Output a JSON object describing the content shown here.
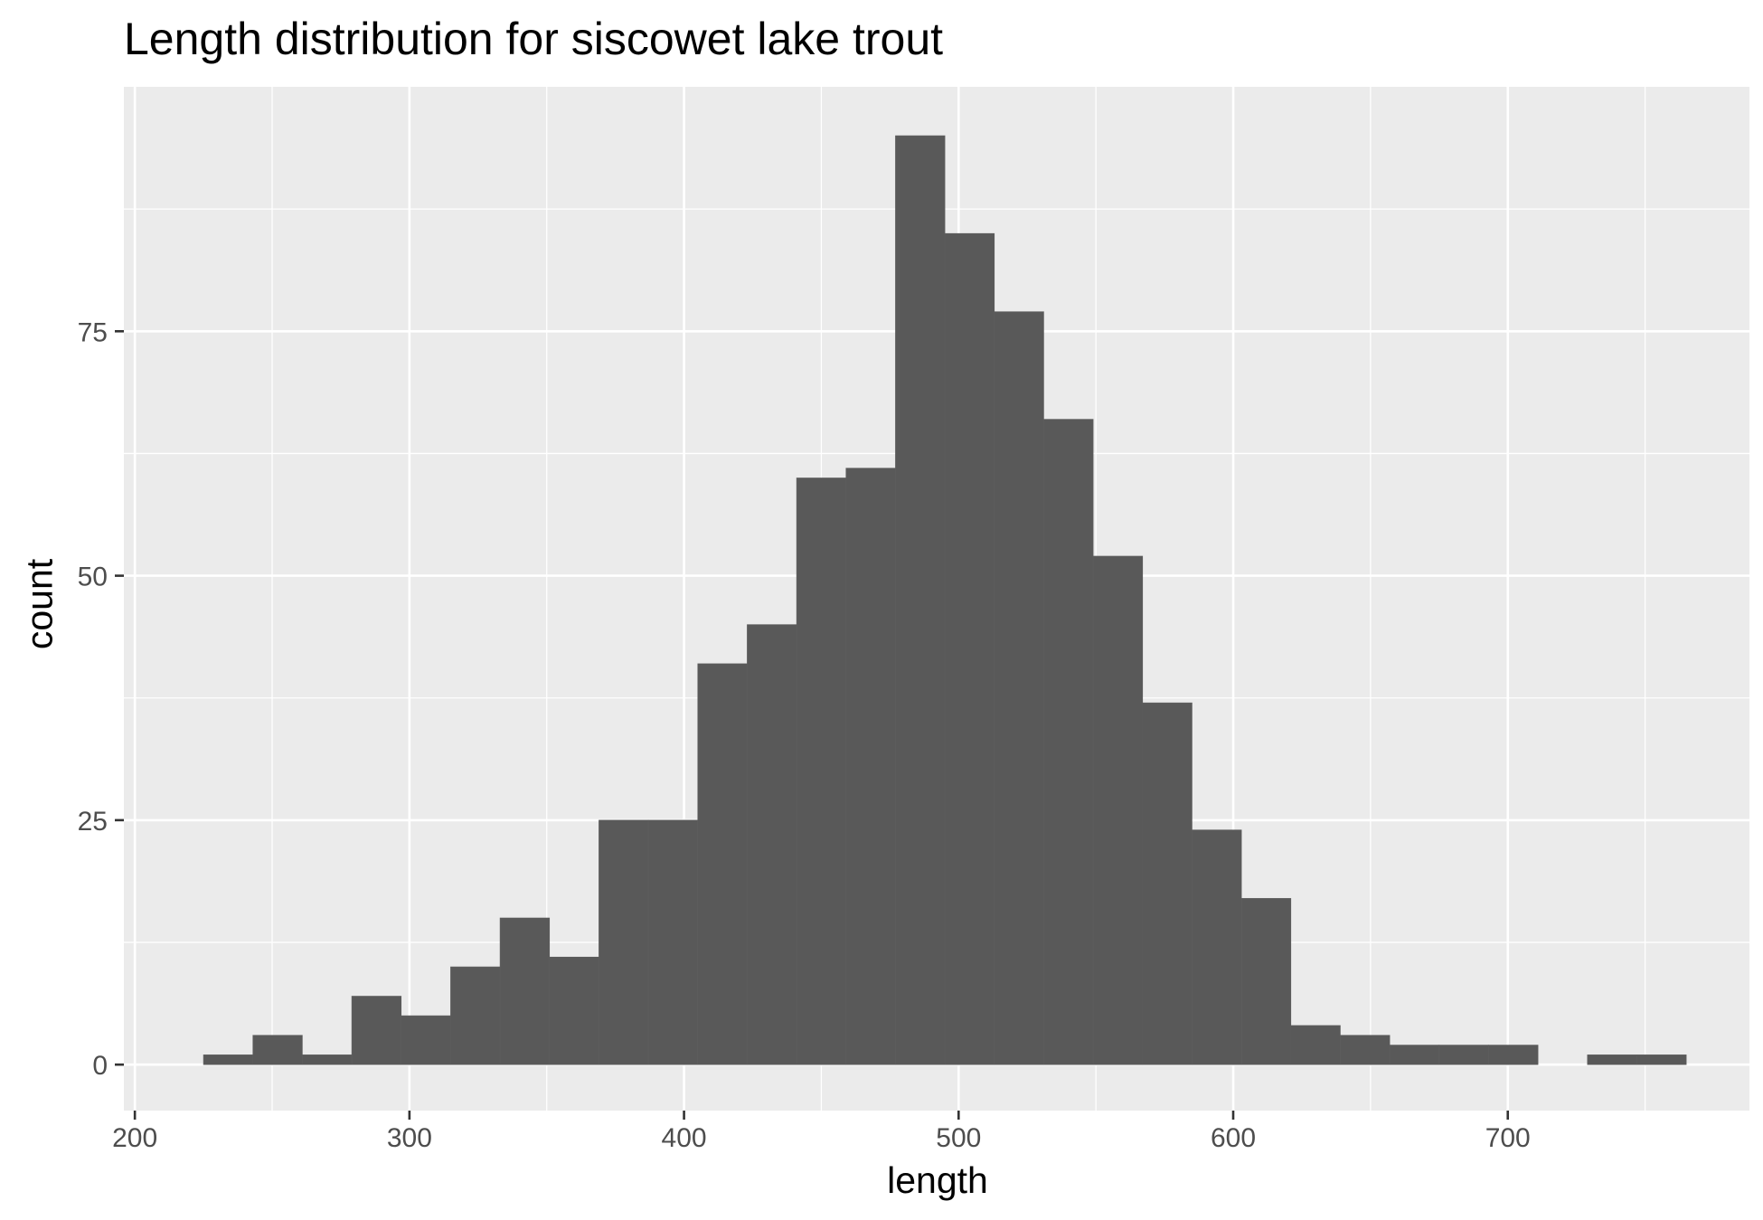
{
  "chart_data": {
    "type": "bar",
    "title": "Length distribution for siscowet lake trout",
    "xlabel": "length",
    "ylabel": "count",
    "xlim": [
      196,
      788
    ],
    "ylim": [
      -4.7,
      100
    ],
    "x_ticks": [
      200,
      300,
      400,
      500,
      600,
      700
    ],
    "y_ticks": [
      0,
      25,
      50,
      75
    ],
    "bin_width": 18,
    "bins": [
      {
        "start": 225,
        "end": 243,
        "count": 1
      },
      {
        "start": 243,
        "end": 261,
        "count": 3
      },
      {
        "start": 261,
        "end": 279,
        "count": 1
      },
      {
        "start": 279,
        "end": 297,
        "count": 7
      },
      {
        "start": 297,
        "end": 315,
        "count": 5
      },
      {
        "start": 315,
        "end": 333,
        "count": 10
      },
      {
        "start": 333,
        "end": 351,
        "count": 15
      },
      {
        "start": 351,
        "end": 369,
        "count": 11
      },
      {
        "start": 369,
        "end": 387,
        "count": 25
      },
      {
        "start": 387,
        "end": 405,
        "count": 25
      },
      {
        "start": 405,
        "end": 423,
        "count": 41
      },
      {
        "start": 423,
        "end": 441,
        "count": 45
      },
      {
        "start": 441,
        "end": 459,
        "count": 60
      },
      {
        "start": 459,
        "end": 477,
        "count": 61
      },
      {
        "start": 477,
        "end": 495,
        "count": 95
      },
      {
        "start": 495,
        "end": 513,
        "count": 85
      },
      {
        "start": 513,
        "end": 531,
        "count": 77
      },
      {
        "start": 531,
        "end": 549,
        "count": 66
      },
      {
        "start": 549,
        "end": 567,
        "count": 52
      },
      {
        "start": 567,
        "end": 585,
        "count": 37
      },
      {
        "start": 585,
        "end": 603,
        "count": 24
      },
      {
        "start": 603,
        "end": 621,
        "count": 17
      },
      {
        "start": 621,
        "end": 639,
        "count": 4
      },
      {
        "start": 639,
        "end": 657,
        "count": 3
      },
      {
        "start": 657,
        "end": 675,
        "count": 2
      },
      {
        "start": 675,
        "end": 693,
        "count": 2
      },
      {
        "start": 693,
        "end": 711,
        "count": 2
      },
      {
        "start": 711,
        "end": 729,
        "count": 0
      },
      {
        "start": 729,
        "end": 747,
        "count": 1
      },
      {
        "start": 747,
        "end": 765,
        "count": 1
      }
    ],
    "grid": true,
    "legend": "none",
    "colors": {
      "bar_fill": "#595959",
      "panel_background": "#ebebeb",
      "grid": "#ffffff",
      "tick_text": "#4d4d4d"
    }
  }
}
